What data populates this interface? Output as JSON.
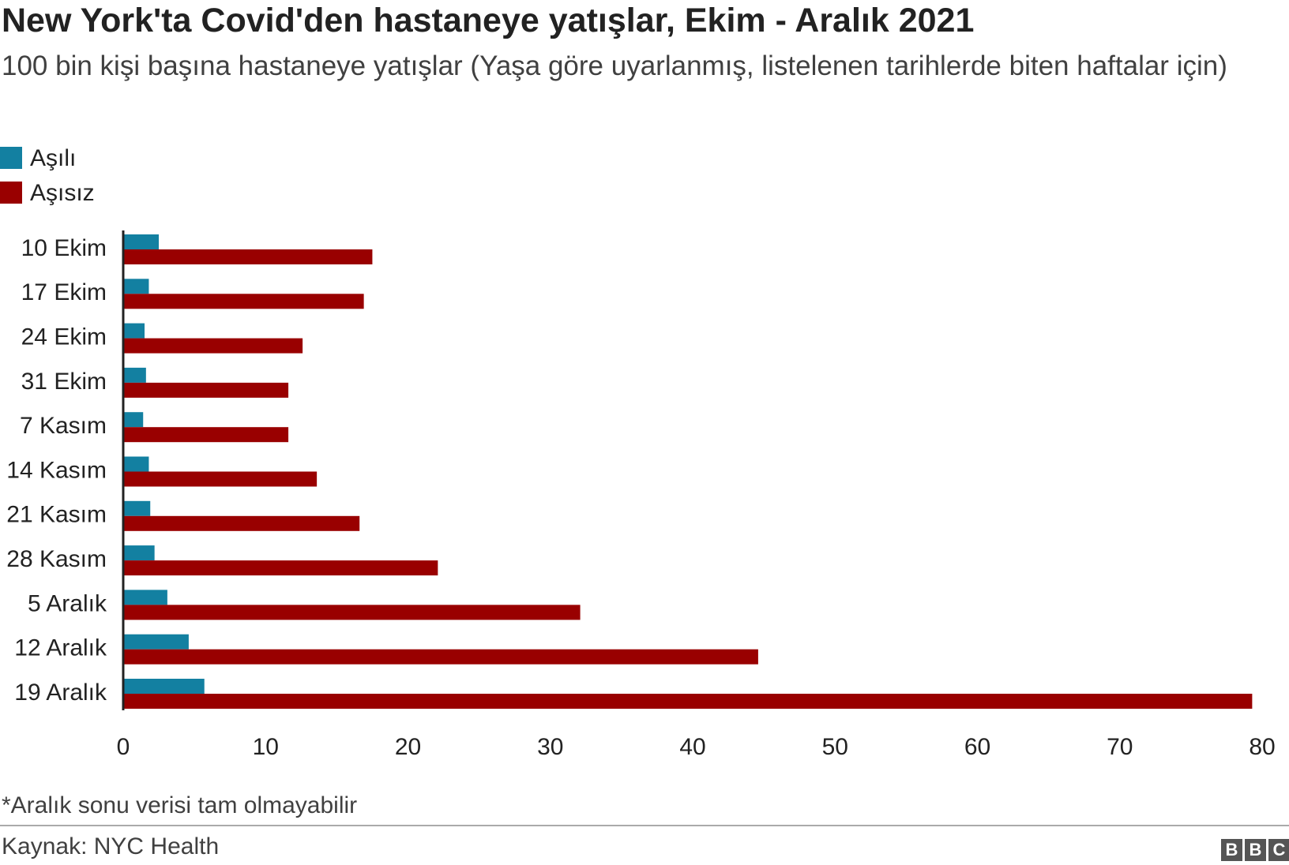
{
  "chart_data": {
    "type": "bar",
    "orientation": "horizontal",
    "title": "New York'ta Covid'den hastaneye yatışlar, Ekim - Aralık 2021",
    "subtitle": "100 bin kişi başına hastaneye yatışlar (Yaşa göre uyarlanmış, listelenen tarihlerde biten haftalar için)",
    "categories": [
      "10 Ekim",
      "17 Ekim",
      "24 Ekim",
      "31 Ekim",
      "7 Kasım",
      "14 Kasım",
      "21 Kasım",
      "28 Kasım",
      "5 Aralık",
      "12 Aralık",
      "19 Aralık"
    ],
    "series": [
      {
        "name": "Aşılı",
        "color": "#1380a1",
        "values": [
          2.5,
          1.8,
          1.5,
          1.6,
          1.4,
          1.8,
          1.9,
          2.2,
          3.1,
          4.6,
          5.7
        ]
      },
      {
        "name": "Aşısız",
        "color": "#990000",
        "values": [
          17.5,
          16.9,
          12.6,
          11.6,
          11.6,
          13.6,
          16.6,
          22.1,
          32.1,
          44.6,
          79.3
        ]
      }
    ],
    "xlim": [
      0,
      80
    ],
    "xticks": [
      0,
      10,
      20,
      30,
      40,
      50,
      60,
      70,
      80
    ],
    "grid": false,
    "legend": "top-left",
    "note": "*Aralık sonu verisi tam olmayabilir",
    "source": "Kaynak: NYC Health",
    "logo": [
      "B",
      "B",
      "C"
    ]
  }
}
